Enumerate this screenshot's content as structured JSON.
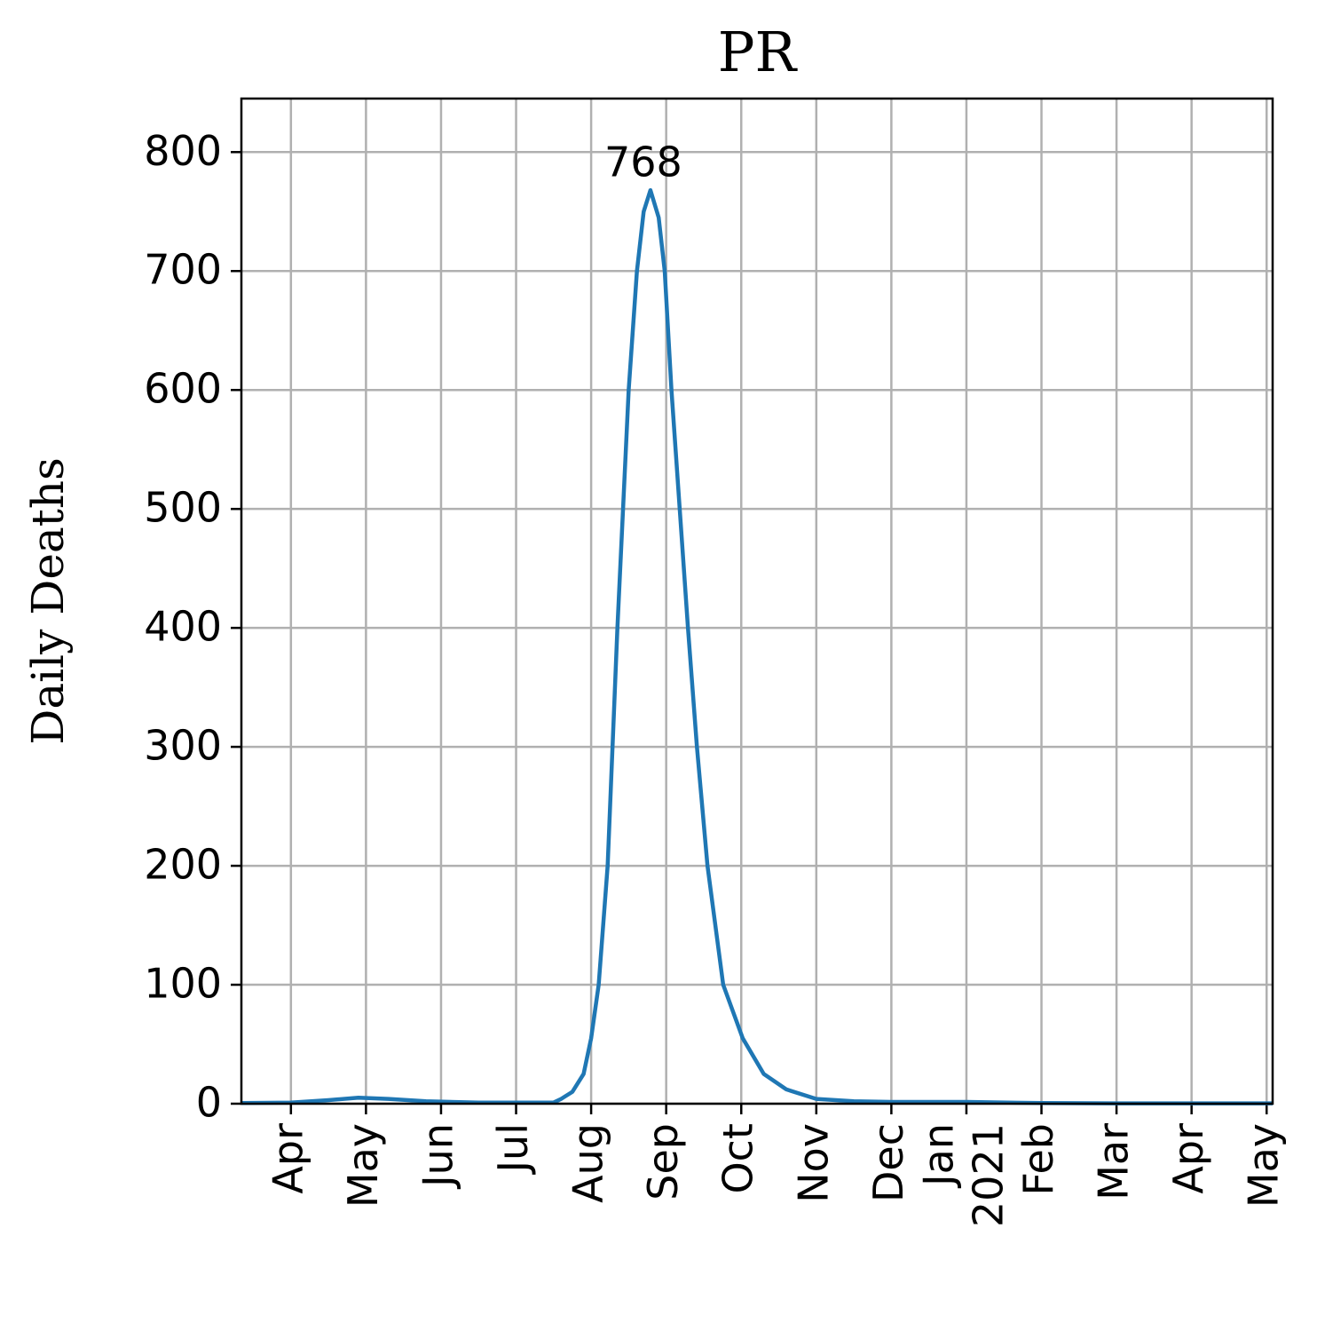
{
  "chart_data": {
    "type": "line",
    "title": "PR",
    "y_label": "Daily Deaths",
    "x": [
      -0.66,
      0,
      0.5,
      0.9,
      1.3,
      1.8,
      2.5,
      3.5,
      3.6,
      3.75,
      3.9,
      4.0,
      4.1,
      4.22,
      4.35,
      4.5,
      4.61,
      4.7,
      4.79,
      4.9,
      4.98,
      5.07,
      5.18,
      5.29,
      5.41,
      5.55,
      5.76,
      6.02,
      6.3,
      6.6,
      7.0,
      7.5,
      8.0,
      9.0,
      10.0,
      11.0,
      13.08
    ],
    "series": [
      {
        "name": "Daily Deaths",
        "color": "#1f77b4",
        "values": [
          0.5,
          1,
          3,
          5,
          4,
          2,
          1,
          1,
          4,
          10,
          25,
          55,
          100,
          200,
          400,
          600,
          700,
          750,
          768,
          745,
          700,
          600,
          500,
          400,
          300,
          200,
          100,
          55,
          25,
          12,
          4,
          2,
          1.5,
          1.5,
          0.5,
          0.3,
          0.3
        ]
      }
    ],
    "peak": {
      "x": 4.79,
      "value": 768
    },
    "xlim": [
      -0.66,
      13.08
    ],
    "xticks": [
      {
        "value": 0,
        "label": "Apr"
      },
      {
        "value": 1,
        "label": "May"
      },
      {
        "value": 2,
        "label": "Jun"
      },
      {
        "value": 3,
        "label": "Jul"
      },
      {
        "value": 4,
        "label": "Aug"
      },
      {
        "value": 5,
        "label": "Sep"
      },
      {
        "value": 6,
        "label": "Oct"
      },
      {
        "value": 7,
        "label": "Nov"
      },
      {
        "value": 8,
        "label": "Dec"
      },
      {
        "value": 9,
        "label": "Jan"
      },
      {
        "value": 10,
        "label": "Feb"
      },
      {
        "value": 11,
        "label": "Mar"
      },
      {
        "value": 12,
        "label": "Apr"
      },
      {
        "value": 13,
        "label": "May"
      }
    ],
    "x_sublabels": [
      {
        "value": 9,
        "label": "2021"
      }
    ],
    "ylim": [
      0,
      845
    ],
    "yticks": [
      0,
      100,
      200,
      300,
      400,
      500,
      600,
      700,
      800
    ],
    "grid": true
  }
}
